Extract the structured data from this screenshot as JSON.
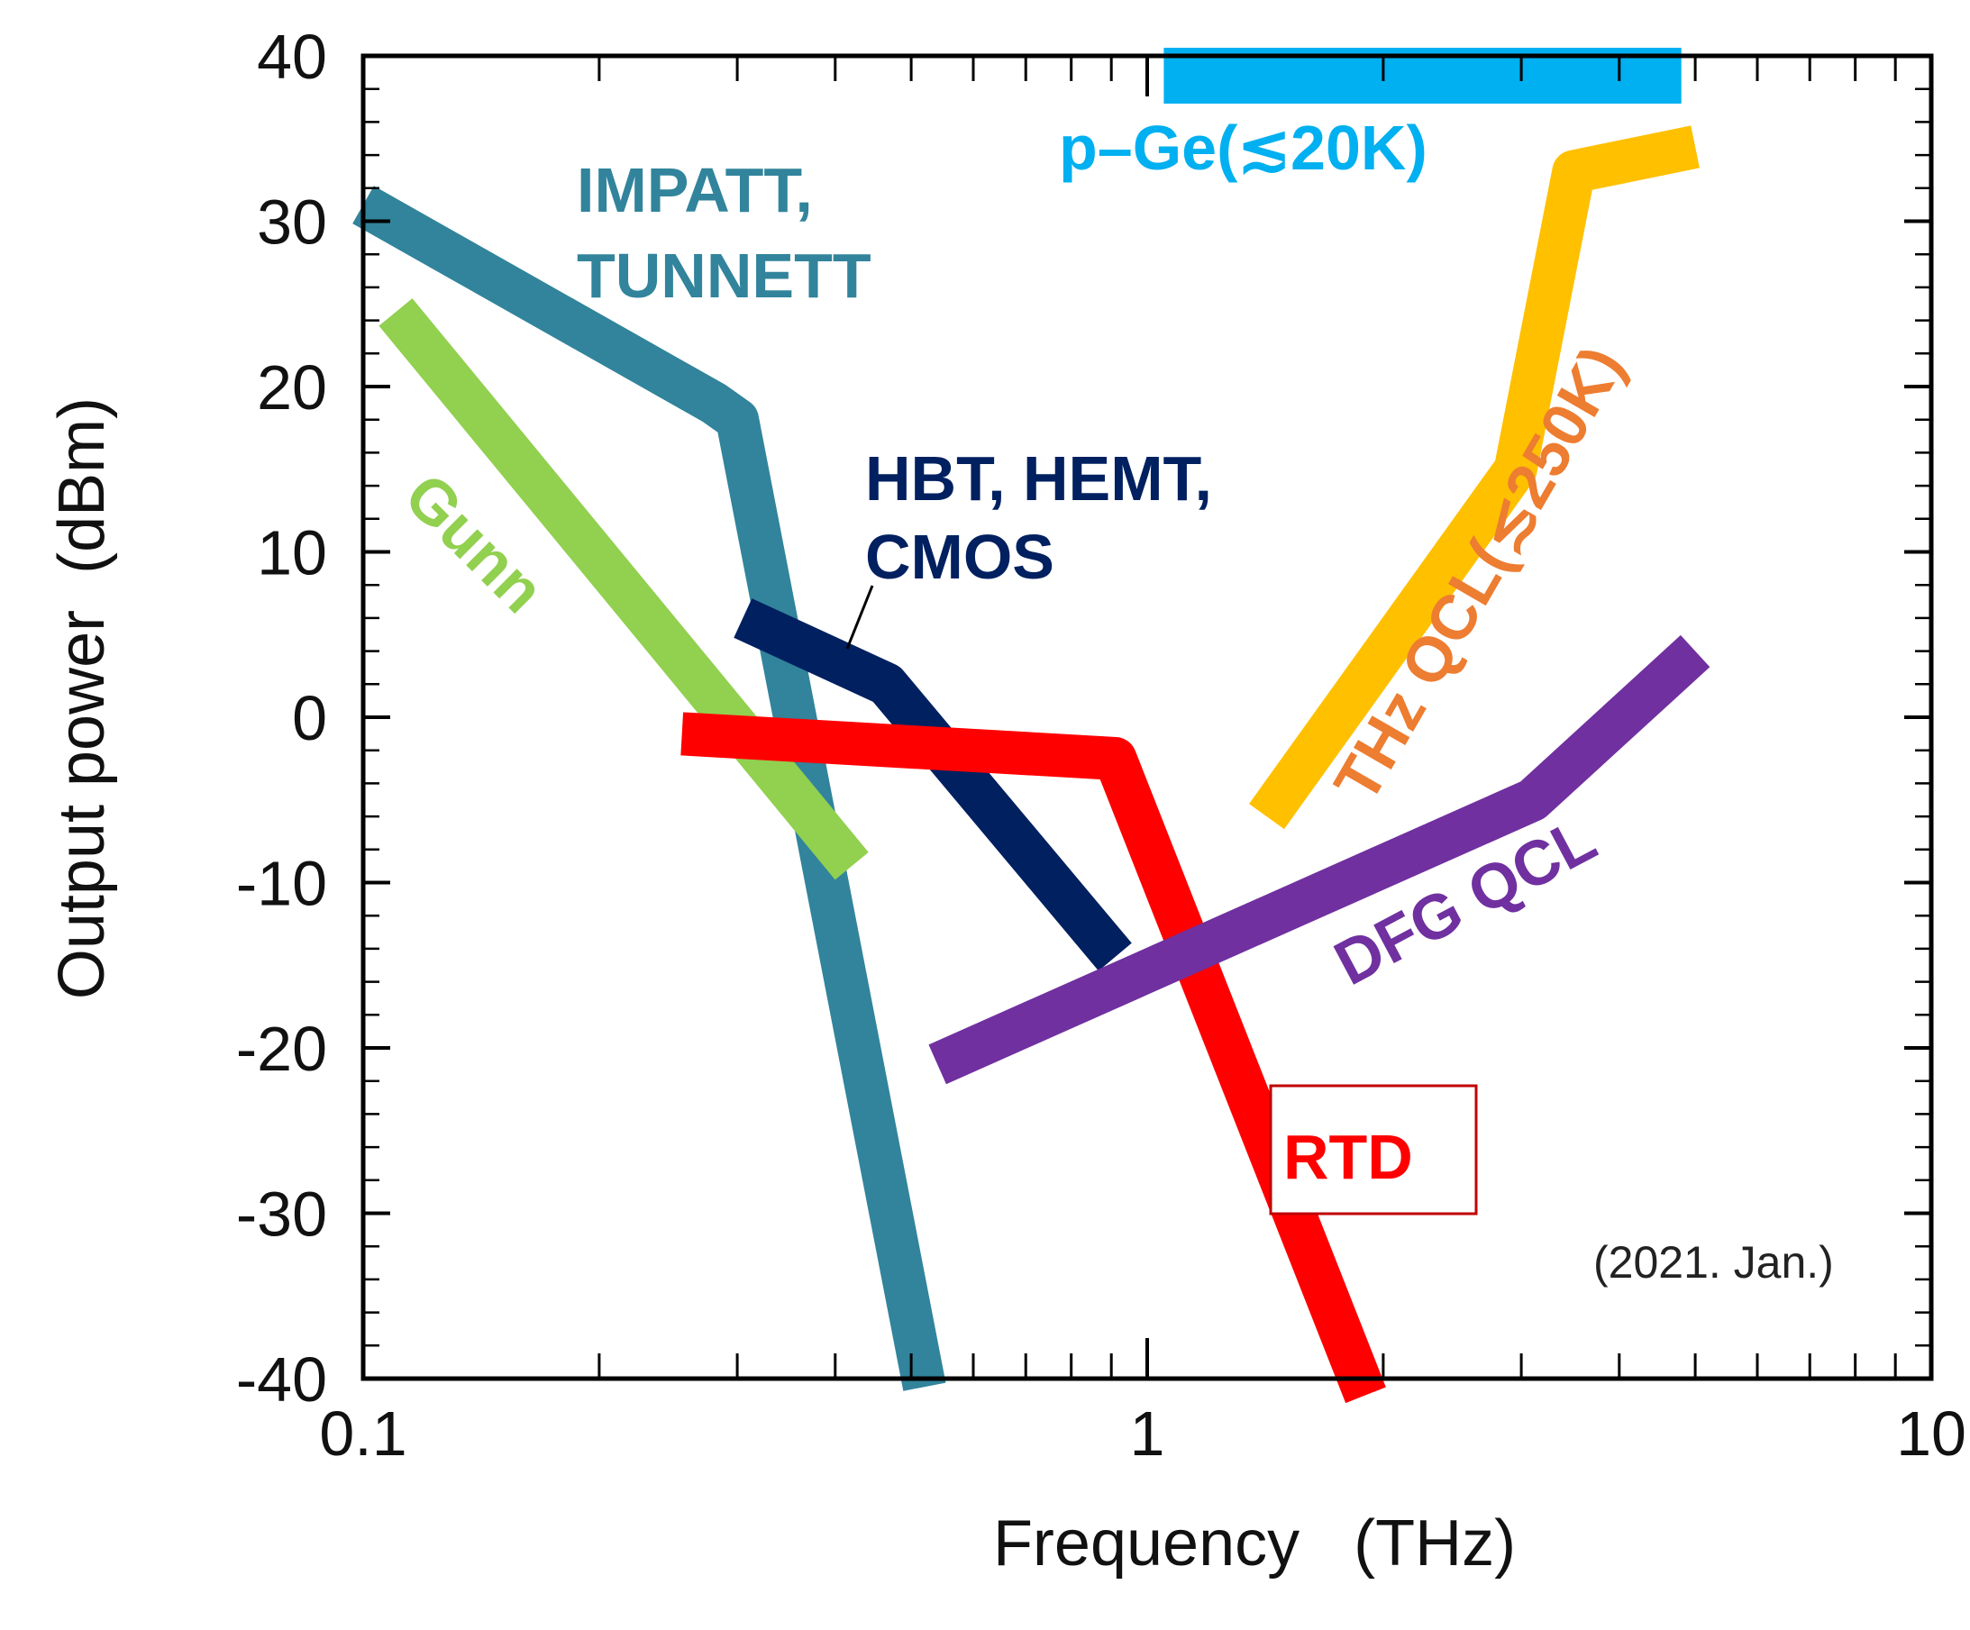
{
  "chart_data": {
    "type": "line",
    "title": "",
    "xlabel": "Frequency   (THz)",
    "ylabel": "Output power  (dBm)",
    "xscale": "log",
    "xlim": [
      0.1,
      10
    ],
    "ylim": [
      -40,
      40
    ],
    "x_ticks": [
      {
        "value": 0.1,
        "label": "0.1"
      },
      {
        "value": 1,
        "label": "1"
      },
      {
        "value": 10,
        "label": "10"
      }
    ],
    "y_ticks": [
      {
        "value": 40,
        "label": "40"
      },
      {
        "value": 30,
        "label": "30"
      },
      {
        "value": 20,
        "label": "20"
      },
      {
        "value": 10,
        "label": "10"
      },
      {
        "value": 0,
        "label": "0"
      },
      {
        "value": -10,
        "label": "-10"
      },
      {
        "value": -20,
        "label": "-20"
      },
      {
        "value": -30,
        "label": "-30"
      },
      {
        "value": -40,
        "label": "-40"
      }
    ],
    "series": [
      {
        "name": "p–Ge(≲20K)",
        "color": "#00b0f0",
        "x": [
          1.05,
          4.8
        ],
        "y": [
          38.8,
          38.8
        ]
      },
      {
        "name": "IMPATT, TUNNETT",
        "color": "#31849b",
        "x": [
          0.1,
          0.28,
          0.3,
          0.52
        ],
        "y": [
          31,
          19,
          18,
          -40.5
        ]
      },
      {
        "name": "Gunn",
        "color": "#92d050",
        "x": [
          0.11,
          0.42
        ],
        "y": [
          24.5,
          -9
        ]
      },
      {
        "name": "HBT, HEMT, CMOS",
        "color": "#002060",
        "x": [
          0.305,
          0.465,
          0.91
        ],
        "y": [
          6,
          2,
          -14.5
        ]
      },
      {
        "name": "RTD",
        "color": "#ff0000",
        "x": [
          0.255,
          0.91,
          1.9
        ],
        "y": [
          -1,
          -2.5,
          -41
        ]
      },
      {
        "name": "DFG QCL",
        "color": "#7030a0",
        "x": [
          0.54,
          3.1,
          5.0
        ],
        "y": [
          -21,
          -5,
          4
        ]
      },
      {
        "name": "THz QCL(≲250K)",
        "color": "#ffc000",
        "x": [
          1.42,
          2.95,
          3.5,
          5.0
        ],
        "y": [
          -6,
          15,
          33,
          34.5
        ]
      }
    ],
    "labels": {
      "pge": "p–Ge(≲20K)",
      "impatt_line1": "IMPATT,",
      "impatt_line2": "TUNNETT",
      "gunn": "Gunn",
      "hbt_line1": "HBT, HEMT,",
      "hbt_line2": "CMOS",
      "thz_qcl": "THz QCL(≲250K)",
      "dfg_qcl": "DFG QCL",
      "rtd": "RTD"
    },
    "label_colors": {
      "pge": "#00b0f0",
      "impatt": "#31849b",
      "gunn": "#92d050",
      "hbt": "#002060",
      "thz_qcl": "#ed7d31",
      "dfg_qcl": "#7030a0",
      "rtd": "#ff0000"
    },
    "annotation": "(2021. Jan.)",
    "grid": false,
    "legend": "none"
  }
}
